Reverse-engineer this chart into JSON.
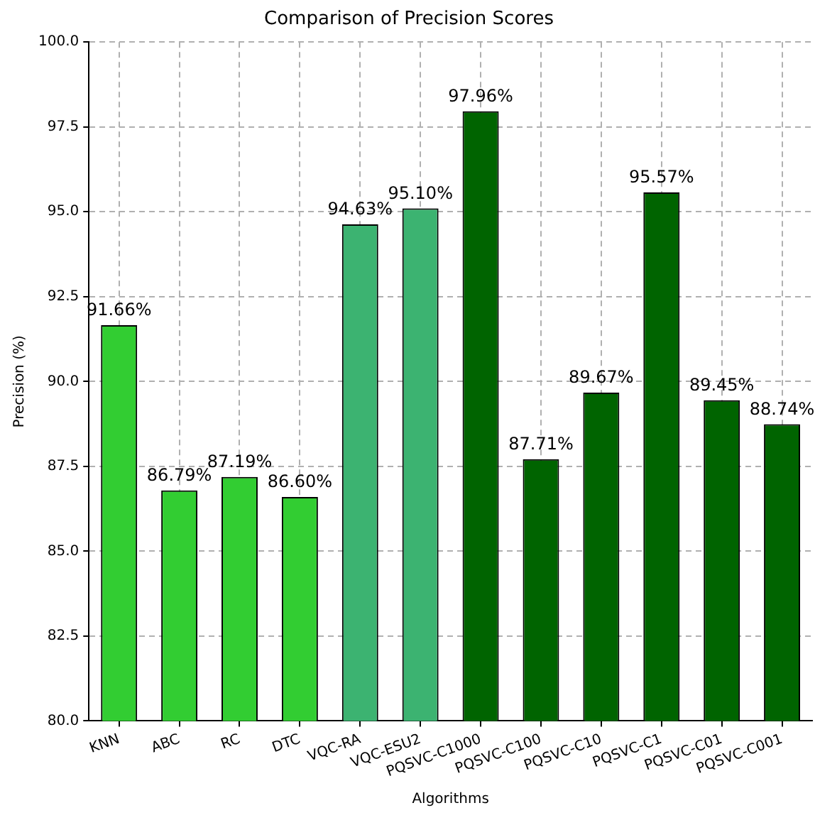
{
  "chart_data": {
    "type": "bar",
    "title": "Comparison of Precision Scores",
    "xlabel": "Algorithms",
    "ylabel": "Precision (%)",
    "categories": [
      "KNN",
      "ABC",
      "RC",
      "DTC",
      "VQC-RA",
      "VQC-ESU2",
      "PQSVC-C1000",
      "PQSVC-C100",
      "PQSVC-C10",
      "PQSVC-C1",
      "PQSVC-C01",
      "PQSVC-C001"
    ],
    "values": [
      91.66,
      86.79,
      87.19,
      86.6,
      94.63,
      95.1,
      97.96,
      87.71,
      89.67,
      95.57,
      89.45,
      88.74
    ],
    "colors": [
      "#32cd32",
      "#32cd32",
      "#32cd32",
      "#32cd32",
      "#3cb371",
      "#3cb371",
      "#006400",
      "#006400",
      "#006400",
      "#006400",
      "#006400",
      "#006400"
    ],
    "value_labels": [
      "91.66%",
      "86.79%",
      "87.19%",
      "86.60%",
      "94.63%",
      "95.10%",
      "97.96%",
      "87.71%",
      "89.67%",
      "95.57%",
      "89.45%",
      "88.74%"
    ],
    "ylim": [
      80,
      100
    ],
    "yticks": [
      {
        "value": 80,
        "label": "80.0"
      },
      {
        "value": 82.5,
        "label": "82.5"
      },
      {
        "value": 85,
        "label": "85.0"
      },
      {
        "value": 87.5,
        "label": "87.5"
      },
      {
        "value": 90,
        "label": "90.0"
      },
      {
        "value": 92.5,
        "label": "92.5"
      },
      {
        "value": 95,
        "label": "95.0"
      },
      {
        "value": 97.5,
        "label": "97.5"
      },
      {
        "value": 100,
        "label": "100.0"
      }
    ],
    "grid": true,
    "legend": false
  }
}
